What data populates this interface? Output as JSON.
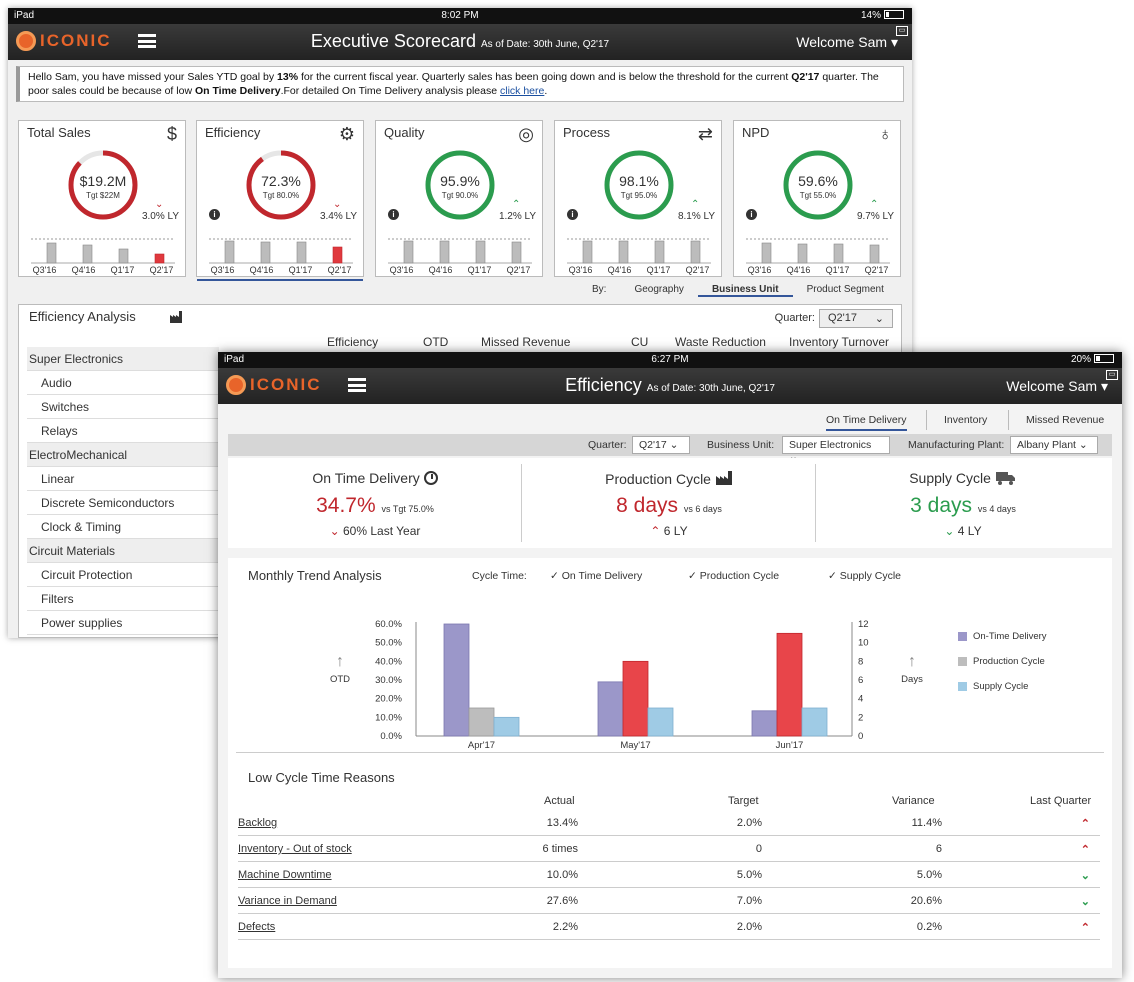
{
  "colors": {
    "red": "#c0272d",
    "green": "#2b9c4e",
    "accent": "#e8642a",
    "purple": "#9b97c9",
    "gray": "#bdbdbd",
    "blue": "#9fcbe5"
  },
  "screen1": {
    "status": {
      "device": "iPad",
      "time": "8:02 PM",
      "battery": "14%"
    },
    "app": {
      "logo": "ICONIC",
      "title": "Executive Scorecard",
      "as_of": "As of Date: 30th June, Q2'17",
      "welcome": "Welcome Sam"
    },
    "alert": {
      "part1": "Hello Sam, you have missed your Sales YTD goal by ",
      "pct": "13%",
      "part2": " for the current fiscal year. Quarterly sales has been going down and is below the threshold for the current ",
      "quarter": "Q2'17",
      "part3": " quarter. The poor sales could be because of low ",
      "otd": "On Time Delivery",
      "part4": ".For detailed On Time Delivery analysis please ",
      "link": "click here",
      "part5": "."
    },
    "kpis": [
      {
        "title": "Total Sales",
        "icon": "dollar-icon",
        "value": "$19.2M",
        "target": "Tgt $22M",
        "ly": "3.0% LY",
        "trend": "down",
        "progress": 0.87,
        "info": false
      },
      {
        "title": "Efficiency",
        "icon": "gears-icon",
        "value": "72.3%",
        "target": "Tgt 80.0%",
        "ly": "3.4% LY",
        "trend": "down",
        "progress": 0.9,
        "info": true
      },
      {
        "title": "Quality",
        "icon": "target-icon",
        "value": "95.9%",
        "target": "Tgt 90.0%",
        "ly": "1.2% LY",
        "trend": "up",
        "progress": 1,
        "info": true
      },
      {
        "title": "Process",
        "icon": "cycle-icon",
        "value": "98.1%",
        "target": "Tgt 95.0%",
        "ly": "8.1% LY",
        "trend": "up",
        "progress": 1,
        "info": true
      },
      {
        "title": "NPD",
        "icon": "bulb-icon",
        "value": "59.6%",
        "target": "Tgt 55.0%",
        "ly": "9.7% LY",
        "trend": "up",
        "progress": 1,
        "info": true
      }
    ],
    "quarters": [
      "Q3'16",
      "Q4'16",
      "Q1'17",
      "Q2'17"
    ],
    "by": {
      "label": "By:",
      "options": [
        "Geography",
        "Business Unit",
        "Product Segment"
      ],
      "selected": "Business Unit"
    },
    "analysis": {
      "title": "Efficiency Analysis",
      "quarter_label": "Quarter:",
      "quarter_value": "Q2'17",
      "columns": [
        "Efficiency",
        "OTD",
        "Missed Revenue",
        "CU",
        "Waste Reduction",
        "Inventory Turnover"
      ],
      "rows": [
        {
          "label": "Super Electronics",
          "group": true
        },
        {
          "label": "Audio",
          "group": false
        },
        {
          "label": "Switches",
          "group": false
        },
        {
          "label": "Relays",
          "group": false
        },
        {
          "label": "ElectroMechanical",
          "group": true
        },
        {
          "label": "Linear",
          "group": false
        },
        {
          "label": "Discrete Semiconductors",
          "group": false
        },
        {
          "label": "Clock & Timing",
          "group": false
        },
        {
          "label": "Circuit Materials",
          "group": true
        },
        {
          "label": "Circuit Protection",
          "group": false
        },
        {
          "label": "Filters",
          "group": false
        },
        {
          "label": "Power supplies",
          "group": false
        }
      ]
    }
  },
  "screen2": {
    "status": {
      "device": "iPad",
      "time": "6:27 PM",
      "battery": "20%"
    },
    "app": {
      "logo": "ICONIC",
      "title": "Efficiency",
      "as_of": "As of Date: 30th June, Q2'17",
      "welcome": "Welcome Sam"
    },
    "tabs": [
      "On Time Delivery",
      "Inventory",
      "Missed Revenue"
    ],
    "filters": {
      "quarter_label": "Quarter:",
      "quarter": "Q2'17",
      "bu_label": "Business Unit:",
      "bu": "Super Electronics",
      "plant_label": "Manufacturing Plant:",
      "plant": "Albany Plant"
    },
    "kpis": [
      {
        "title": "On Time Delivery",
        "icon": "clock-icon",
        "value": "34.7%",
        "target": "vs Tgt  75.0%",
        "ly": "60% Last Year",
        "trend": "down",
        "color": "red"
      },
      {
        "title": "Production Cycle",
        "icon": "factory-icon",
        "value": "8 days",
        "target": "vs 6 days",
        "ly": "6 LY",
        "trend": "up",
        "color": "red"
      },
      {
        "title": "Supply Cycle",
        "icon": "truck-icon",
        "value": "3 days",
        "target": "vs 4 days",
        "ly": "4 LY",
        "trend": "down",
        "color": "green"
      }
    ],
    "trend": {
      "title": "Monthly Trend Analysis",
      "cycle_label": "Cycle Time:",
      "checks": [
        "On Time Delivery",
        "Production Cycle",
        "Supply Cycle"
      ]
    },
    "reasons": {
      "title": "Low Cycle Time Reasons",
      "headers": [
        "Actual",
        "Target",
        "Variance",
        "Last Quarter"
      ],
      "rows": [
        {
          "name": "Backlog",
          "actual": "13.4%",
          "target": "2.0%",
          "variance": "11.4%",
          "trend": "up"
        },
        {
          "name": "Inventory - Out of stock",
          "actual": "6 times",
          "target": "0",
          "variance": "6",
          "trend": "up"
        },
        {
          "name": "Machine Downtime",
          "actual": "10.0%",
          "target": "5.0%",
          "variance": "5.0%",
          "trend": "down"
        },
        {
          "name": "Variance in Demand",
          "actual": "27.6%",
          "target": "7.0%",
          "variance": "20.6%",
          "trend": "down"
        },
        {
          "name": "Defects",
          "actual": "2.2%",
          "target": "2.0%",
          "variance": "0.2%",
          "trend": "up"
        }
      ]
    }
  },
  "chart_data": {
    "type": "bar",
    "categories": [
      "Apr'17",
      "May'17",
      "Jun'17"
    ],
    "series": [
      {
        "name": "On-Time Delivery",
        "axis": "left",
        "values": [
          60,
          29,
          13.5
        ]
      },
      {
        "name": "Production Cycle",
        "axis": "right",
        "values": [
          3,
          8,
          11
        ]
      },
      {
        "name": "Supply Cycle",
        "axis": "right",
        "values": [
          2,
          3,
          3
        ]
      }
    ],
    "ylabel": "OTD",
    "y2label": "Days",
    "ylim": [
      0,
      60
    ],
    "y2lim": [
      0,
      12
    ],
    "yticks": [
      "0.0%",
      "10.0%",
      "20.0%",
      "30.0%",
      "40.0%",
      "50.0%",
      "60.0%"
    ],
    "y2ticks": [
      "0",
      "2",
      "4",
      "6",
      "8",
      "10",
      "12"
    ],
    "legend": "right"
  }
}
